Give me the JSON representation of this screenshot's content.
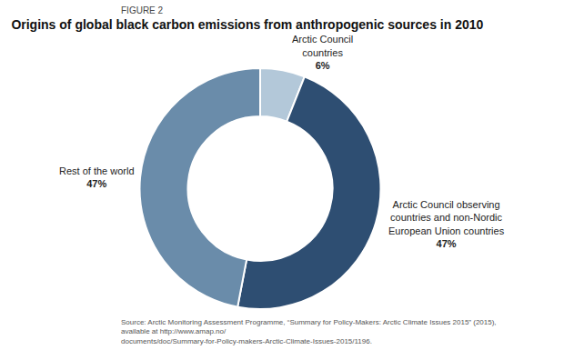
{
  "chart_data": {
    "type": "pie",
    "title": "Origins of global black carbon emissions from anthropogenic sources in 2010",
    "categories": [
      "Arctic Council\ncountries",
      "Arctic Council observing\ncountries and non-Nordic\nEuropean Union countries",
      "Rest of the world"
    ],
    "values": [
      6,
      47,
      47
    ],
    "value_labels": [
      "6%",
      "47%",
      "47%"
    ],
    "colors": [
      "#b3c8d9",
      "#2e4e72",
      "#6a8caa"
    ],
    "annotations": [
      "FIGURE 2",
      "Source: Arctic Monitoring Assessment Programme, “Summary for Policy-Makers: Arctic Climate Issues 2015” (2015), available at http://www.amap.no/\ndocuments/doc/Summary-for-Policy-makers-Arctic-Climate-Issues-2015/1196."
    ]
  }
}
